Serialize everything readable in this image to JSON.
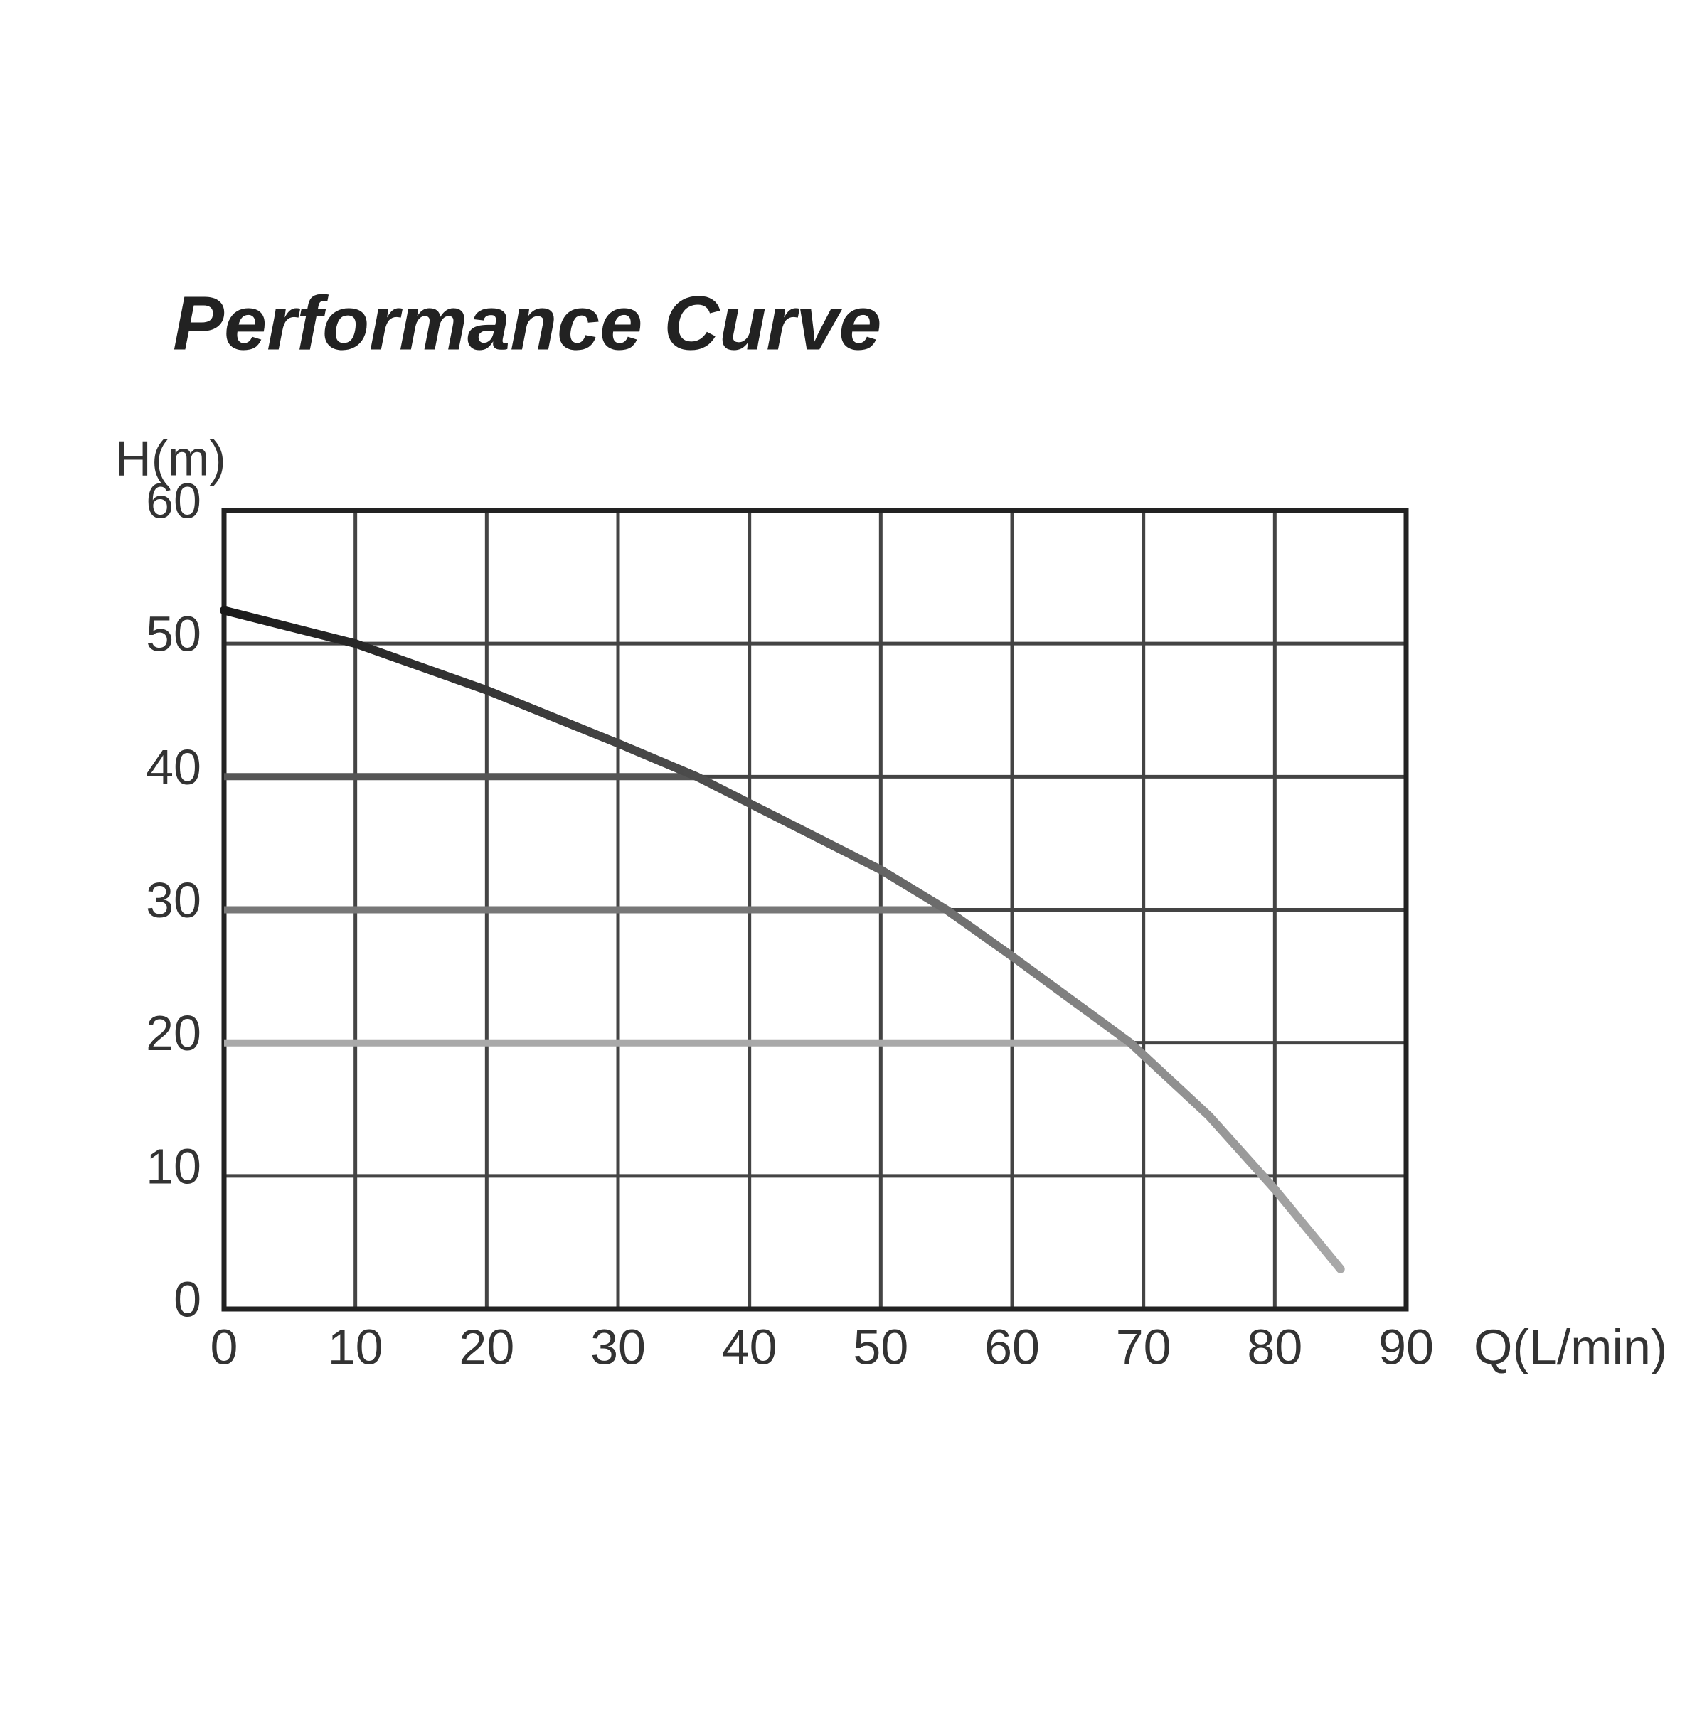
{
  "chart_data": {
    "type": "line",
    "title": "Performance Curve",
    "x_label": "Q(L/min)",
    "y_label": "H(m)",
    "xlim": [
      0,
      90
    ],
    "ylim": [
      0,
      60
    ],
    "xticks": [
      0,
      10,
      20,
      30,
      40,
      50,
      60,
      70,
      80,
      90
    ],
    "yticks": [
      0,
      10,
      20,
      30,
      40,
      50,
      60
    ],
    "grid": true,
    "series": [
      {
        "x": [
          0,
          10,
          20,
          30,
          36,
          40,
          50,
          55,
          60,
          69,
          75,
          80,
          85
        ],
        "values": [
          52.5,
          50,
          46.5,
          42.5,
          40,
          38,
          33,
          30,
          26.5,
          20,
          14.5,
          9,
          3
        ],
        "gradient": [
          "#1a1a1a",
          "#555555",
          "#a9a9a9"
        ]
      },
      {
        "x": [
          0,
          36
        ],
        "values": [
          40,
          40
        ],
        "color": "#555555"
      },
      {
        "x": [
          0,
          55
        ],
        "values": [
          30,
          30
        ],
        "color": "#777777"
      },
      {
        "x": [
          0,
          69
        ],
        "values": [
          20,
          20
        ],
        "color": "#a9a9a9"
      }
    ]
  }
}
